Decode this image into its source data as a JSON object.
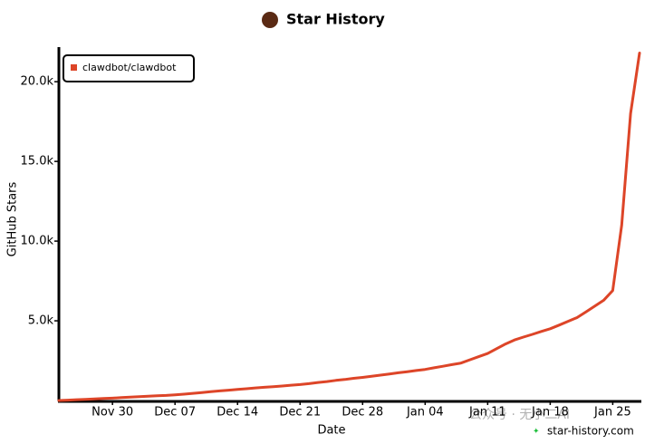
{
  "chart_data": {
    "type": "line",
    "title": "Star History",
    "x_label": "Date",
    "y_label": "GitHub Stars",
    "categories": [
      null,
      null,
      null,
      null,
      null,
      null,
      "Nov 30",
      null,
      null,
      null,
      null,
      null,
      null,
      "Dec 07",
      null,
      null,
      null,
      null,
      null,
      null,
      "Dec 14",
      null,
      null,
      null,
      null,
      null,
      null,
      "Dec 21",
      null,
      null,
      null,
      null,
      null,
      null,
      "Dec 28",
      null,
      null,
      null,
      null,
      null,
      null,
      "Jan 04",
      null,
      null,
      null,
      null,
      null,
      null,
      "Jan 11",
      null,
      null,
      null,
      null,
      null,
      null,
      "Jan 18",
      null,
      null,
      null,
      null,
      null,
      null,
      "Jan 25",
      null,
      null,
      null
    ],
    "series": [
      {
        "name": "clawdbot/clawdbot",
        "color": "#dd4528",
        "values": [
          0,
          25,
          50,
          75,
          100,
          125,
          150,
          180,
          210,
          240,
          270,
          300,
          320,
          350,
          400,
          450,
          500,
          550,
          600,
          650,
          700,
          740,
          790,
          830,
          870,
          910,
          960,
          1000,
          1060,
          1130,
          1190,
          1260,
          1320,
          1390,
          1450,
          1520,
          1590,
          1660,
          1740,
          1810,
          1880,
          1950,
          2050,
          2150,
          2250,
          2350,
          2550,
          2750,
          2950,
          3250,
          3550,
          3800,
          3980,
          4150,
          4330,
          4500,
          4730,
          4970,
          5200,
          5560,
          5930,
          6300,
          6900,
          11000,
          18000,
          21800
        ]
      }
    ],
    "ylim": [
      0,
      22000
    ],
    "yticks": [
      {
        "value": 5000,
        "label": "5.0k"
      },
      {
        "value": 10000,
        "label": "10.0k"
      },
      {
        "value": 15000,
        "label": "15.0k"
      },
      {
        "value": 20000,
        "label": "20.0k"
      }
    ],
    "grid": false,
    "legend": "top-left",
    "watermark": "star-history.com",
    "watermark_wechat": "公众号 · 无小二AI"
  }
}
